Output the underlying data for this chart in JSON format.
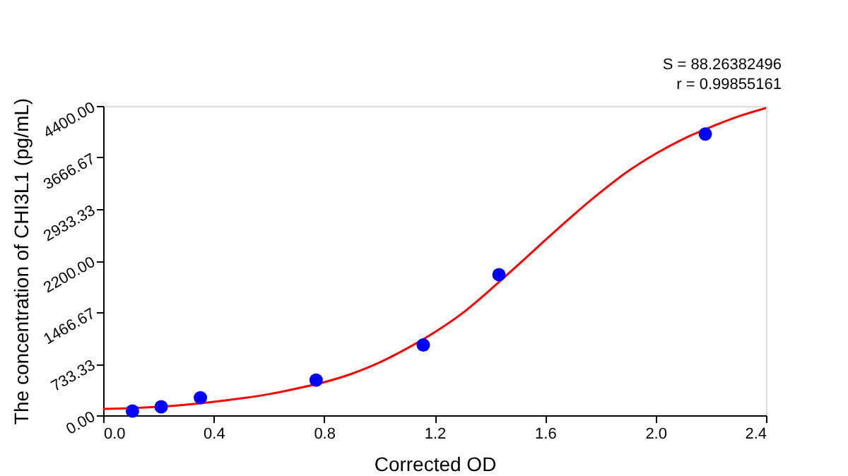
{
  "chart_data": {
    "type": "scatter",
    "xlabel": "Corrected OD",
    "ylabel": "The concentration of CHI3L1 (pg/mL)",
    "annotations": [
      "S = 88.26382496",
      "r = 0.99855161"
    ],
    "xlim": [
      0,
      2.4
    ],
    "xticks": [
      {
        "value": 0,
        "label": "0.0"
      },
      {
        "value": 0.4,
        "label": "0.4"
      },
      {
        "value": 0.8,
        "label": "0.8"
      },
      {
        "value": 1.2,
        "label": "1.2"
      },
      {
        "value": 1.6,
        "label": "1.6"
      },
      {
        "value": 2.0,
        "label": "2.0"
      },
      {
        "value": 2.4,
        "label": "2.4"
      }
    ],
    "ylim": [
      0,
      4400
    ],
    "yticks": [
      {
        "value": 0,
        "label": "0.00"
      },
      {
        "value": 733.33,
        "label": "733.33"
      },
      {
        "value": 1466.67,
        "label": "1466.67"
      },
      {
        "value": 2200,
        "label": "2200.00"
      },
      {
        "value": 2933.33,
        "label": "2933.33"
      },
      {
        "value": 3666.67,
        "label": "3666.67"
      },
      {
        "value": 4400,
        "label": "4400.00"
      }
    ],
    "grid": false,
    "series": [
      {
        "type": "line",
        "color": "#ff0000",
        "x": [
          0,
          0.1,
          0.2,
          0.3,
          0.4,
          0.5,
          0.6,
          0.7,
          0.8,
          0.9,
          1.0,
          1.1,
          1.2,
          1.3,
          1.4,
          1.5,
          1.6,
          1.7,
          1.8,
          1.9,
          2.0,
          2.1,
          2.2,
          2.3,
          2.4
        ],
        "values": [
          90,
          100,
          120,
          150,
          190,
          240,
          300,
          380,
          470,
          590,
          750,
          950,
          1180,
          1450,
          1780,
          2130,
          2490,
          2840,
          3170,
          3470,
          3720,
          3930,
          4100,
          4250,
          4370
        ]
      },
      {
        "marker": "circle",
        "color": "#0000ff",
        "x": [
          0.106,
          0.21,
          0.352,
          0.771,
          1.159,
          1.433,
          2.18
        ],
        "values": [
          60,
          120,
          250,
          500,
          1000,
          2000,
          4000
        ]
      }
    ]
  }
}
